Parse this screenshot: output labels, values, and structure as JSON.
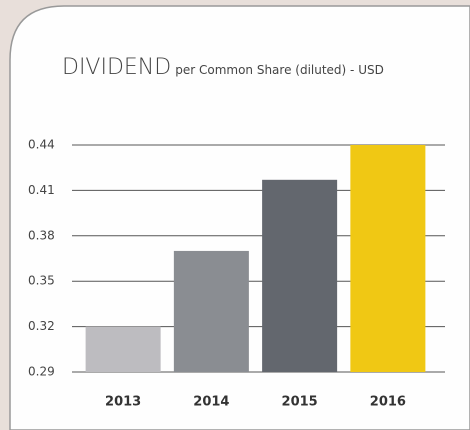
{
  "chart_data": {
    "type": "bar",
    "title": "DIVIDEND",
    "subtitle": "per Common Share (diluted) - USD",
    "categories": [
      "2013",
      "2014",
      "2015",
      "2016"
    ],
    "values": [
      0.32,
      0.37,
      0.417,
      0.44
    ],
    "colors": [
      "#bdbcc0",
      "#8a8d92",
      "#63676e",
      "#f0c814"
    ],
    "ylim": [
      0.29,
      0.44
    ],
    "yticks": [
      0.29,
      0.32,
      0.35,
      0.38,
      0.41,
      0.44
    ],
    "grid": true
  }
}
